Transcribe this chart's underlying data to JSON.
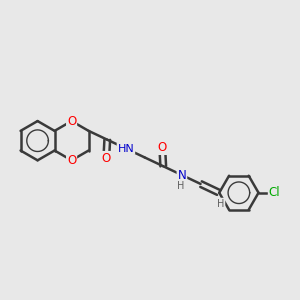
{
  "bg_color": "#e8e8e8",
  "bond_color": "#3a3a3a",
  "bond_width": 1.8,
  "atom_colors": {
    "O": "#ff0000",
    "N": "#0000cc",
    "Cl": "#00aa00",
    "C": "#3a3a3a",
    "H": "#606060"
  },
  "font_size": 8.5,
  "fig_size": [
    3.0,
    3.0
  ],
  "dpi": 100
}
